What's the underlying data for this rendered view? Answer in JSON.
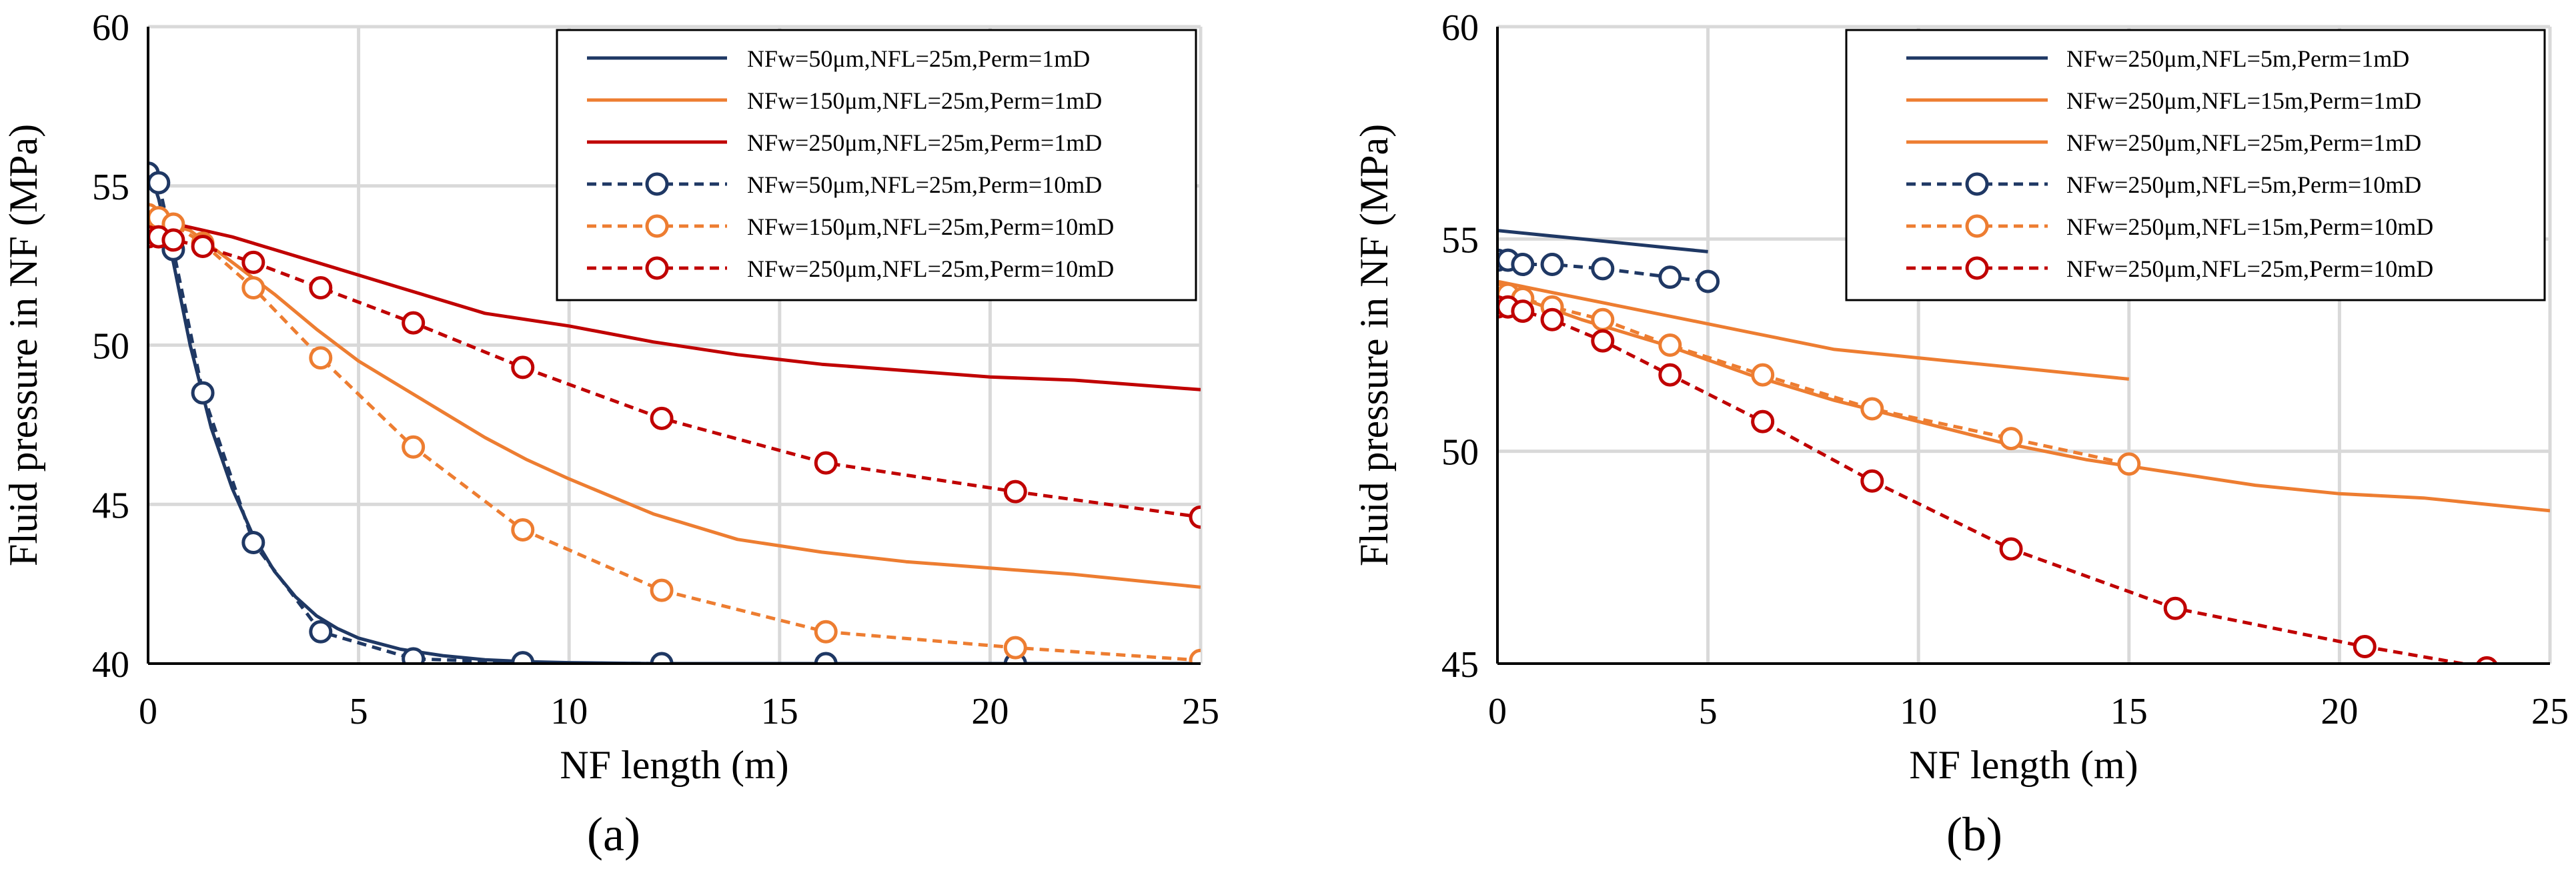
{
  "chart_data": [
    {
      "type": "line",
      "panel_label": "(a)",
      "xlabel": "NF length (m)",
      "ylabel": "Fluid pressure in NF (MPa)",
      "xlim": [
        0,
        25
      ],
      "ylim": [
        40,
        60
      ],
      "xticks": [
        0,
        5,
        10,
        15,
        20,
        25
      ],
      "yticks": [
        40,
        45,
        50,
        55,
        60
      ],
      "grid": true,
      "legend": "top-right",
      "series": [
        {
          "name": "NFw=50μm,NFL=25m,Perm=1mD",
          "color": "#1f3864",
          "style": "solid",
          "marker": false,
          "x": [
            0,
            0.25,
            0.6,
            1.0,
            1.5,
            2.0,
            2.5,
            3.0,
            3.5,
            4.0,
            4.5,
            5.0,
            6.0,
            7.0,
            8.0,
            9.0,
            10,
            12,
            15,
            20,
            25
          ],
          "y": [
            55.6,
            54.6,
            52.6,
            50.0,
            47.4,
            45.5,
            44.0,
            42.9,
            42.1,
            41.5,
            41.1,
            40.8,
            40.45,
            40.25,
            40.12,
            40.06,
            40.03,
            40.0,
            40.0,
            40.0,
            40.0
          ]
        },
        {
          "name": "NFw=150μm,NFL=25m,Perm=1mD",
          "color": "#ed7d31",
          "style": "solid",
          "marker": false,
          "x": [
            0,
            1,
            2,
            3,
            4,
            5,
            6,
            7,
            8,
            9,
            10,
            12,
            14,
            16,
            18,
            20,
            22,
            25
          ],
          "y": [
            54.0,
            53.6,
            52.6,
            51.6,
            50.5,
            49.5,
            48.7,
            47.9,
            47.1,
            46.4,
            45.8,
            44.7,
            43.9,
            43.5,
            43.2,
            43.0,
            42.8,
            42.4
          ]
        },
        {
          "name": "NFw=250μm,NFL=25m,Perm=1mD",
          "color": "#c00000",
          "style": "solid",
          "marker": false,
          "x": [
            0,
            2,
            4,
            6,
            8,
            10,
            12,
            14,
            16,
            18,
            20,
            22,
            25
          ],
          "y": [
            54.0,
            53.4,
            52.6,
            51.8,
            51.0,
            50.6,
            50.1,
            49.7,
            49.4,
            49.2,
            49.0,
            48.9,
            48.6
          ]
        },
        {
          "name": "NFw=50μm,NFL=25m,Perm=10mD",
          "color": "#1f3864",
          "style": "dashed",
          "marker": true,
          "x": [
            0,
            0.25,
            0.6,
            1.3,
            2.5,
            4.1,
            6.3,
            8.9,
            12.2,
            16.1,
            20.6
          ],
          "y": [
            55.4,
            55.1,
            53.0,
            48.5,
            43.8,
            41.0,
            40.15,
            40.03,
            40.0,
            40.0,
            40.0
          ]
        },
        {
          "name": "NFw=150μm,NFL=25m,Perm=10mD",
          "color": "#ed7d31",
          "style": "dashed",
          "marker": true,
          "x": [
            0,
            0.25,
            0.6,
            1.3,
            2.5,
            4.1,
            6.3,
            8.9,
            12.2,
            16.1,
            20.6,
            25
          ],
          "y": [
            54.1,
            54.0,
            53.8,
            53.2,
            51.8,
            49.6,
            46.8,
            44.2,
            42.3,
            41.0,
            40.5,
            40.1
          ]
        },
        {
          "name": "NFw=250μm,NFL=25m,Perm=10mD",
          "color": "#c00000",
          "style": "dashed",
          "marker": true,
          "x": [
            0,
            0.25,
            0.6,
            1.3,
            2.5,
            4.1,
            6.3,
            8.9,
            12.2,
            16.1,
            20.6,
            25
          ],
          "y": [
            53.4,
            53.4,
            53.3,
            53.1,
            52.6,
            51.8,
            50.7,
            49.3,
            47.7,
            46.3,
            45.4,
            44.6
          ]
        }
      ]
    },
    {
      "type": "line",
      "panel_label": "(b)",
      "xlabel": "NF length (m)",
      "ylabel": "Fluid pressure in NF (MPa)",
      "xlim": [
        0,
        25
      ],
      "ylim": [
        45,
        60
      ],
      "xticks": [
        0,
        5,
        10,
        15,
        20,
        25
      ],
      "yticks": [
        45,
        50,
        55,
        60
      ],
      "grid": true,
      "legend": "top-right",
      "series": [
        {
          "name": "NFw=250μm,NFL=5m,Perm=1mD",
          "color": "#1f3864",
          "style": "solid",
          "marker": false,
          "x": [
            0,
            1,
            2,
            3,
            4,
            5
          ],
          "y": [
            55.2,
            55.1,
            55.0,
            54.9,
            54.8,
            54.7
          ]
        },
        {
          "name": "NFw=250μm,NFL=15m,Perm=1mD",
          "color": "#ed7d31",
          "style": "solid",
          "marker": false,
          "x": [
            0,
            2,
            4,
            6,
            8,
            10,
            12,
            14,
            15
          ],
          "y": [
            54.0,
            53.6,
            53.2,
            52.8,
            52.4,
            52.2,
            52.0,
            51.8,
            51.7
          ]
        },
        {
          "name": "NFw=250μm,NFL=25m,Perm=1mD",
          "color": "#ed7d31",
          "style": "solid",
          "marker": false,
          "x": [
            0,
            2,
            4,
            6,
            8,
            10,
            12,
            14,
            16,
            18,
            20,
            22,
            25
          ],
          "y": [
            53.8,
            53.1,
            52.5,
            51.8,
            51.2,
            50.7,
            50.2,
            49.8,
            49.5,
            49.2,
            49.0,
            48.9,
            48.6
          ]
        },
        {
          "name": "NFw=250μm,NFL=5m,Perm=10mD",
          "color": "#1f3864",
          "style": "dashed",
          "marker": true,
          "x": [
            0,
            0.25,
            0.6,
            1.3,
            2.5,
            4.1,
            5
          ],
          "y": [
            54.5,
            54.5,
            54.4,
            54.4,
            54.3,
            54.1,
            54.0
          ]
        },
        {
          "name": "NFw=250μm,NFL=15m,Perm=10mD",
          "color": "#ed7d31",
          "style": "dashed",
          "marker": true,
          "x": [
            0,
            0.25,
            0.6,
            1.3,
            2.5,
            4.1,
            6.3,
            8.9,
            12.2,
            15
          ],
          "y": [
            53.7,
            53.7,
            53.6,
            53.4,
            53.1,
            52.5,
            51.8,
            51.0,
            50.3,
            49.7
          ]
        },
        {
          "name": "NFw=250μm,NFL=25m,Perm=10mD",
          "color": "#c00000",
          "style": "dashed",
          "marker": true,
          "x": [
            0,
            0.25,
            0.6,
            1.3,
            2.5,
            4.1,
            6.3,
            8.9,
            12.2,
            16.1,
            20.6,
            23.5
          ],
          "y": [
            53.4,
            53.4,
            53.3,
            53.1,
            52.6,
            51.8,
            50.7,
            49.3,
            47.7,
            46.3,
            45.4,
            44.9
          ]
        }
      ]
    }
  ]
}
